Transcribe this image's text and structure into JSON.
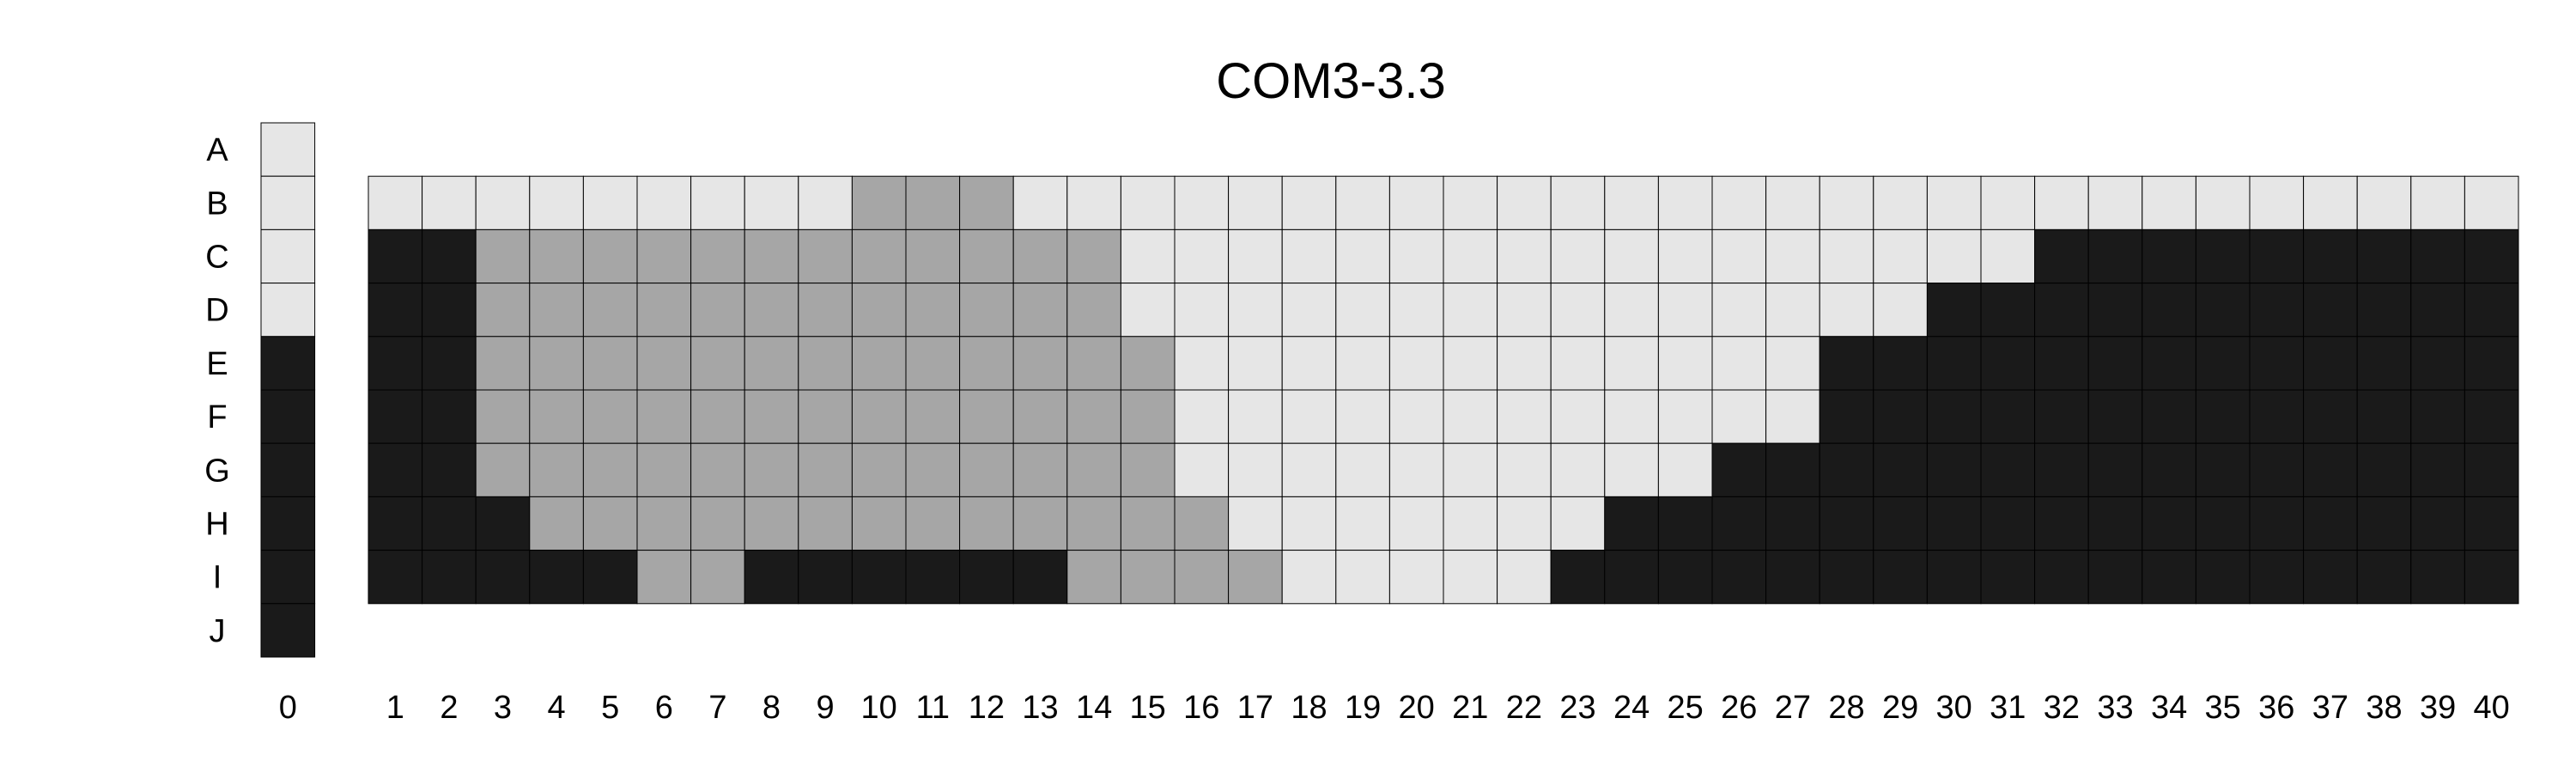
{
  "chart_data": {
    "type": "heatmap",
    "title": "COM3-3.3",
    "row_labels": [
      "A",
      "B",
      "C",
      "D",
      "E",
      "F",
      "G",
      "H",
      "I",
      "J"
    ],
    "column_labels": [
      "0",
      "1",
      "2",
      "3",
      "4",
      "5",
      "6",
      "7",
      "8",
      "9",
      "10",
      "11",
      "12",
      "13",
      "14",
      "15",
      "16",
      "17",
      "18",
      "19",
      "20",
      "21",
      "22",
      "23",
      "24",
      "25",
      "26",
      "27",
      "28",
      "29",
      "30",
      "31",
      "32",
      "33",
      "34",
      "35",
      "36",
      "37",
      "38",
      "39",
      "40"
    ],
    "colors": {
      "L": "#e6e6e6",
      "M": "#a6a6a6",
      "D": "#1a1a1a"
    },
    "reference_column": {
      "column": "0",
      "rows": [
        "A",
        "B",
        "C",
        "D",
        "E",
        "F",
        "G",
        "H",
        "I",
        "J"
      ],
      "values": [
        "L",
        "L",
        "L",
        "L",
        "D",
        "D",
        "D",
        "D",
        "D",
        "D"
      ]
    },
    "grid": {
      "rows": [
        "B",
        "C",
        "D",
        "E",
        "F",
        "G",
        "H",
        "I"
      ],
      "columns": [
        "1",
        "2",
        "3",
        "4",
        "5",
        "6",
        "7",
        "8",
        "9",
        "10",
        "11",
        "12",
        "13",
        "14",
        "15",
        "16",
        "17",
        "18",
        "19",
        "20",
        "21",
        "22",
        "23",
        "24",
        "25",
        "26",
        "27",
        "28",
        "29",
        "30",
        "31",
        "32",
        "33",
        "34",
        "35",
        "36",
        "37",
        "38",
        "39",
        "40"
      ],
      "values": [
        [
          "L",
          "L",
          "L",
          "L",
          "L",
          "L",
          "L",
          "L",
          "L",
          "M",
          "M",
          "M",
          "L",
          "L",
          "L",
          "L",
          "L",
          "L",
          "L",
          "L",
          "L",
          "L",
          "L",
          "L",
          "L",
          "L",
          "L",
          "L",
          "L",
          "L",
          "L",
          "L",
          "L",
          "L",
          "L",
          "L",
          "L",
          "L",
          "L",
          "L"
        ],
        [
          "D",
          "D",
          "M",
          "M",
          "M",
          "M",
          "M",
          "M",
          "M",
          "M",
          "M",
          "M",
          "M",
          "M",
          "L",
          "L",
          "L",
          "L",
          "L",
          "L",
          "L",
          "L",
          "L",
          "L",
          "L",
          "L",
          "L",
          "L",
          "L",
          "L",
          "L",
          "D",
          "D",
          "D",
          "D",
          "D",
          "D",
          "D",
          "D",
          "D"
        ],
        [
          "D",
          "D",
          "M",
          "M",
          "M",
          "M",
          "M",
          "M",
          "M",
          "M",
          "M",
          "M",
          "M",
          "M",
          "L",
          "L",
          "L",
          "L",
          "L",
          "L",
          "L",
          "L",
          "L",
          "L",
          "L",
          "L",
          "L",
          "L",
          "L",
          "D",
          "D",
          "D",
          "D",
          "D",
          "D",
          "D",
          "D",
          "D",
          "D",
          "D"
        ],
        [
          "D",
          "D",
          "M",
          "M",
          "M",
          "M",
          "M",
          "M",
          "M",
          "M",
          "M",
          "M",
          "M",
          "M",
          "M",
          "L",
          "L",
          "L",
          "L",
          "L",
          "L",
          "L",
          "L",
          "L",
          "L",
          "L",
          "L",
          "D",
          "D",
          "D",
          "D",
          "D",
          "D",
          "D",
          "D",
          "D",
          "D",
          "D",
          "D",
          "D"
        ],
        [
          "D",
          "D",
          "M",
          "M",
          "M",
          "M",
          "M",
          "M",
          "M",
          "M",
          "M",
          "M",
          "M",
          "M",
          "M",
          "L",
          "L",
          "L",
          "L",
          "L",
          "L",
          "L",
          "L",
          "L",
          "L",
          "L",
          "L",
          "D",
          "D",
          "D",
          "D",
          "D",
          "D",
          "D",
          "D",
          "D",
          "D",
          "D",
          "D",
          "D"
        ],
        [
          "D",
          "D",
          "M",
          "M",
          "M",
          "M",
          "M",
          "M",
          "M",
          "M",
          "M",
          "M",
          "M",
          "M",
          "M",
          "L",
          "L",
          "L",
          "L",
          "L",
          "L",
          "L",
          "L",
          "L",
          "L",
          "D",
          "D",
          "D",
          "D",
          "D",
          "D",
          "D",
          "D",
          "D",
          "D",
          "D",
          "D",
          "D",
          "D",
          "D"
        ],
        [
          "D",
          "D",
          "D",
          "M",
          "M",
          "M",
          "M",
          "M",
          "M",
          "M",
          "M",
          "M",
          "M",
          "M",
          "M",
          "M",
          "L",
          "L",
          "L",
          "L",
          "L",
          "L",
          "L",
          "D",
          "D",
          "D",
          "D",
          "D",
          "D",
          "D",
          "D",
          "D",
          "D",
          "D",
          "D",
          "D",
          "D",
          "D",
          "D",
          "D"
        ],
        [
          "D",
          "D",
          "D",
          "D",
          "D",
          "M",
          "M",
          "D",
          "D",
          "D",
          "D",
          "D",
          "D",
          "M",
          "M",
          "M",
          "M",
          "L",
          "L",
          "L",
          "L",
          "L",
          "D",
          "D",
          "D",
          "D",
          "D",
          "D",
          "D",
          "D",
          "D",
          "D",
          "D",
          "D",
          "D",
          "D",
          "D",
          "D",
          "D",
          "D"
        ]
      ]
    }
  }
}
